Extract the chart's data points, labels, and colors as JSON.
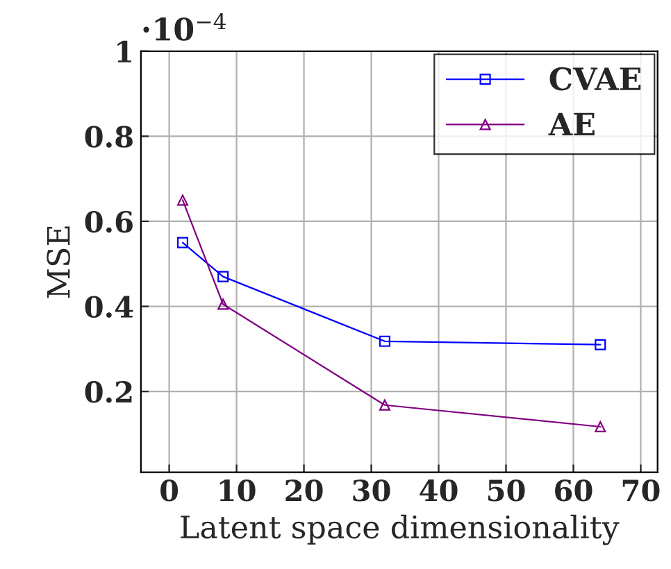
{
  "chart_data": {
    "type": "line",
    "xlabel": "Latent space dimensionality",
    "ylabel": "MSE",
    "annotations": [
      "·10$^{−4}$"
    ],
    "x": [
      2,
      8,
      32,
      64
    ],
    "series": [
      {
        "name": "CVAE",
        "color": "#0000ff",
        "values": [
          0.55,
          0.47,
          0.318,
          0.31
        ],
        "marker": "square"
      },
      {
        "name": "AE",
        "color": "#800080",
        "values": [
          0.65,
          0.405,
          0.168,
          0.117
        ],
        "marker": "triangle"
      }
    ],
    "xlim": [
      -4.2,
      72.5
    ],
    "ylim": [
      0.01,
      1
    ],
    "xticks": [
      0,
      10,
      20,
      30,
      40,
      50,
      60,
      70
    ],
    "yticks": [
      0.2,
      0.4,
      0.6,
      0.8,
      1
    ],
    "grid": true,
    "legend": "top right",
    "line_style": "solid"
  }
}
